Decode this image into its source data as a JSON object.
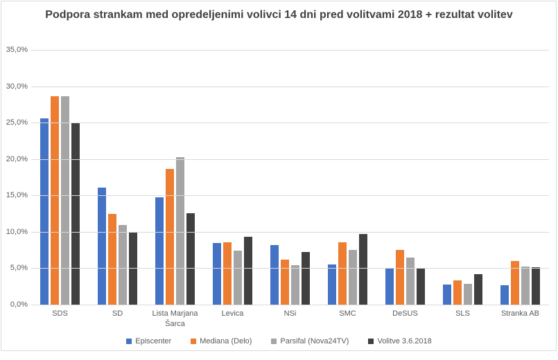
{
  "chart_data": {
    "type": "bar",
    "title": "Podpora strankam med opredeljenimi volivci 14 dni pred volitvami 2018 + rezultat volitev",
    "categories": [
      "SDS",
      "SD",
      "Lista Marjana Šarca",
      "Levica",
      "NSi",
      "SMC",
      "DeSUS",
      "SLS",
      "Stranka AB"
    ],
    "series": [
      {
        "name": "Episcenter",
        "color": "#4472c4",
        "values": [
          25.6,
          16.1,
          14.7,
          8.5,
          8.2,
          5.5,
          4.9,
          2.8,
          2.7
        ]
      },
      {
        "name": "Mediana (Delo)",
        "color": "#ed7d31",
        "values": [
          28.6,
          12.5,
          18.6,
          8.6,
          6.2,
          8.6,
          7.5,
          3.3,
          6.0
        ]
      },
      {
        "name": "Parsifal (Nova24TV)",
        "color": "#a5a5a5",
        "values": [
          28.6,
          10.9,
          20.3,
          7.4,
          5.4,
          7.5,
          6.5,
          2.9,
          5.2
        ]
      },
      {
        "name": "Volitve 3.6.2018",
        "color": "#404040",
        "values": [
          24.9,
          9.9,
          12.6,
          9.3,
          7.2,
          9.7,
          4.9,
          4.2,
          5.1
        ]
      }
    ],
    "y_axis": {
      "min": 0,
      "max": 35,
      "step": 5,
      "tick_labels": [
        "0,0%",
        "5,0%",
        "10,0%",
        "15,0%",
        "20,0%",
        "25,0%",
        "30,0%",
        "35,0%"
      ]
    },
    "grid": true,
    "legend_position": "bottom"
  },
  "styles": {
    "title_color": "#404040",
    "axis_text_color": "#595959",
    "grid_color": "#d9d9d9",
    "frame_border_color": "#d9d9d9",
    "background": "#ffffff"
  }
}
